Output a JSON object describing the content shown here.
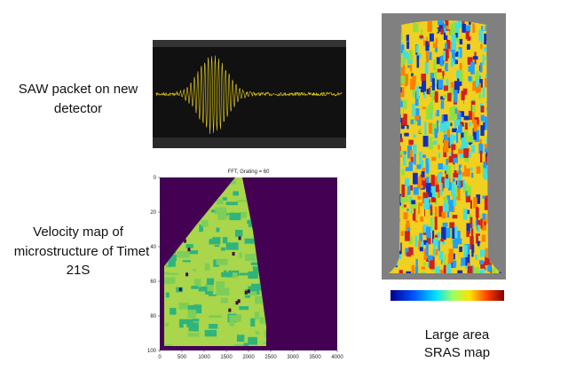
{
  "captions": {
    "saw": [
      "SAW packet on new",
      "detector"
    ],
    "velocity": [
      "Velocity map of",
      "microstructure of Timet",
      "21S"
    ],
    "sras": [
      "Large area",
      "SRAS map"
    ]
  },
  "velocity_map": {
    "title": "FFT, Grating = 60",
    "xlim": [
      0,
      4000
    ],
    "xticks": [
      0,
      500,
      1000,
      1500,
      2000,
      2500,
      3000,
      3500,
      4000
    ],
    "ylim": [
      0,
      100
    ],
    "yticks": [
      0,
      20,
      40,
      60,
      80,
      100
    ]
  }
}
